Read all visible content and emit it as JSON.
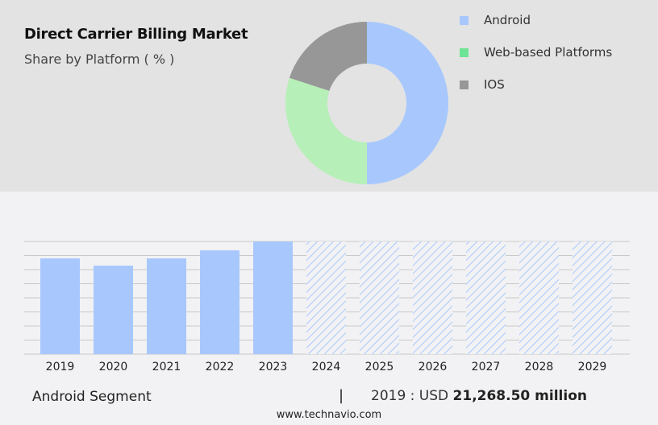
{
  "chart_data": [
    {
      "type": "pie",
      "title": "Direct Carrier Billing Market",
      "subtitle": "Share by Platform ( % )",
      "donut": true,
      "legend_position": "right",
      "slices": [
        {
          "name": "Android",
          "value": 50,
          "color": "#a8c8fd"
        },
        {
          "name": "Web-based Platforms",
          "value": 30,
          "color": "#b7efb8",
          "legend_color": "#6ee396"
        },
        {
          "name": "IOS",
          "value": 20,
          "color": "#979797"
        }
      ]
    },
    {
      "type": "bar",
      "categories": [
        "2019",
        "2020",
        "2021",
        "2022",
        "2023",
        "2024",
        "2025",
        "2026",
        "2027",
        "2028",
        "2029"
      ],
      "values": [
        21268.5,
        19660,
        21268.5,
        23050,
        25020,
        null,
        null,
        null,
        null,
        null,
        null
      ],
      "forecast_from": "2024",
      "color": "#a8c8fd",
      "grid": true,
      "ylim": [
        0,
        25020
      ]
    }
  ],
  "footer": {
    "segment": "Android Segment",
    "separator": "|",
    "stat_prefix": "2019 : USD",
    "stat_value": "21,268.50 million",
    "url": "www.technavio.com"
  }
}
